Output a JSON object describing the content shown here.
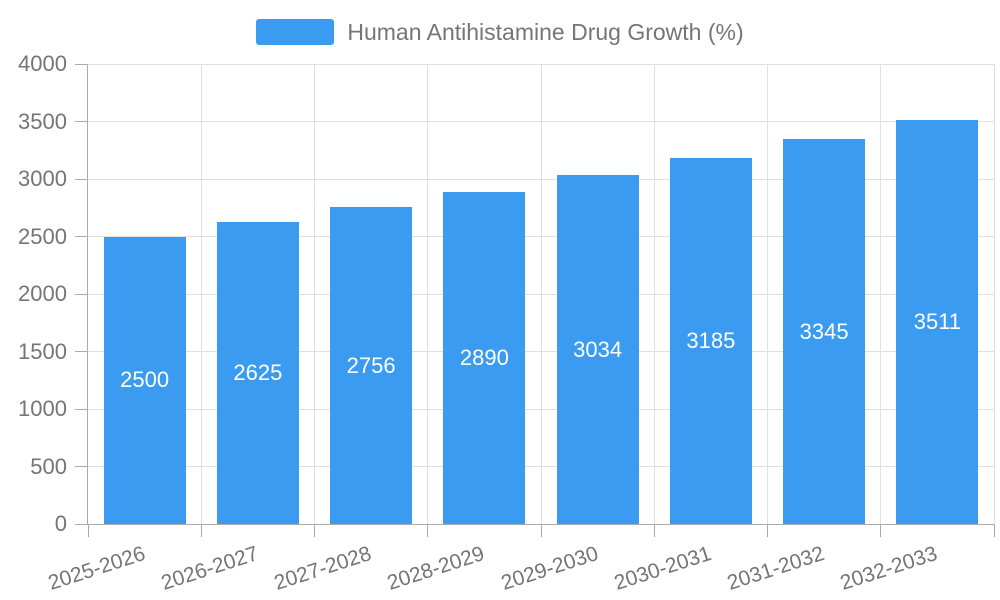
{
  "chart_data": {
    "type": "bar",
    "title": "Human Antihistamine Drug Growth (%)",
    "legend": [
      "Human Antihistamine Drug Growth (%)"
    ],
    "legend_position": "top-center",
    "categories": [
      "2025-2026",
      "2026-2027",
      "2027-2028",
      "2028-2029",
      "2029-2030",
      "2030-2031",
      "2031-2032",
      "2032-2033"
    ],
    "values": [
      2500,
      2625,
      2756,
      2890,
      3034,
      3185,
      3345,
      3511
    ],
    "bar_value_labels": [
      "2500",
      "2625",
      "2756",
      "2890",
      "3034",
      "3185",
      "3345",
      "3511"
    ],
    "xlabel": "",
    "ylabel": "",
    "ylim": [
      0,
      4000
    ],
    "ytick_step": 500,
    "yticks": [
      "0",
      "500",
      "1000",
      "1500",
      "2000",
      "2500",
      "3000",
      "3500",
      "4000"
    ],
    "grid": "on",
    "x_label_rotation_deg": -18,
    "colors": {
      "bar": "#3B9BF0",
      "grid_line": "#E0E0E0",
      "axis_line": "#AAAAAA",
      "tick_label": "#757575",
      "legend_text": "#757575",
      "value_label": "#FFFFFF"
    }
  }
}
